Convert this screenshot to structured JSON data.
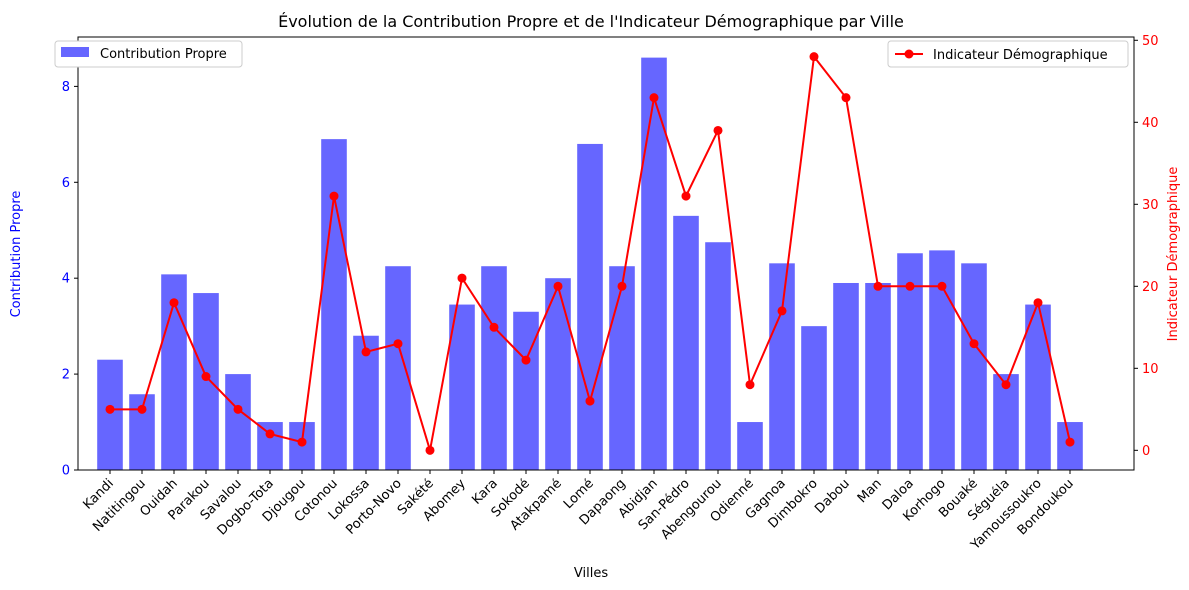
{
  "chart_data": {
    "type": "bar",
    "title": "Évolution de la Contribution Propre et de l'Indicateur Démographique par Ville",
    "xlabel": "Villes",
    "ylabel_left": "Contribution Propre",
    "ylabel_right": "Indicateur Démographique",
    "categories": [
      "Kandi",
      "Natitingou",
      "Ouidah",
      "Parakou",
      "Savalou",
      "Dogbo-Tota",
      "Djougou",
      "Cotonou",
      "Lokossa",
      "Porto-Novo",
      "Sakété",
      "Abomey",
      "Kara",
      "Sokodé",
      "Atakpamé",
      "Lomé",
      "Dapaong",
      "Abidjan",
      "San-Pédro",
      "Abengourou",
      "Odienné",
      "Gagnoa",
      "Dimbokro",
      "Dabou",
      "Man",
      "Daloa",
      "Korhogo",
      "Bouaké",
      "Séguéla",
      "Yamoussoukro",
      "Bondoukou"
    ],
    "series": [
      {
        "name": "Contribution Propre",
        "type": "bar",
        "axis": "left",
        "color": "#6666ff",
        "values": [
          2.3,
          1.58,
          4.08,
          3.69,
          2.0,
          1.0,
          1.0,
          6.9,
          2.8,
          4.25,
          0.0,
          3.45,
          4.25,
          3.3,
          4.0,
          6.8,
          4.25,
          8.6,
          5.3,
          4.75,
          1.0,
          4.31,
          3.0,
          3.9,
          3.9,
          4.52,
          4.58,
          4.31,
          2.0,
          3.45,
          1.0
        ]
      },
      {
        "name": "Indicateur Démographique",
        "type": "line",
        "axis": "right",
        "color": "#ff0000",
        "values": [
          5,
          5,
          18,
          9,
          5,
          2,
          1,
          31,
          12,
          13,
          0,
          21,
          15,
          11,
          20,
          6,
          20,
          43,
          31,
          39,
          8,
          17,
          48,
          43,
          20,
          20,
          20,
          13,
          8,
          18,
          1
        ]
      }
    ],
    "ylim_left": [
      0,
      9.03
    ],
    "yticks_left": [
      0,
      2,
      4,
      6,
      8
    ],
    "ylim_right": [
      -2.4,
      50.4
    ],
    "yticks_right": [
      0,
      10,
      20,
      30,
      40,
      50
    ],
    "left_axis_color": "#0000ff",
    "right_axis_color": "#ff0000",
    "legend_left_position": "upper left",
    "legend_right_position": "upper right",
    "grid": false
  }
}
